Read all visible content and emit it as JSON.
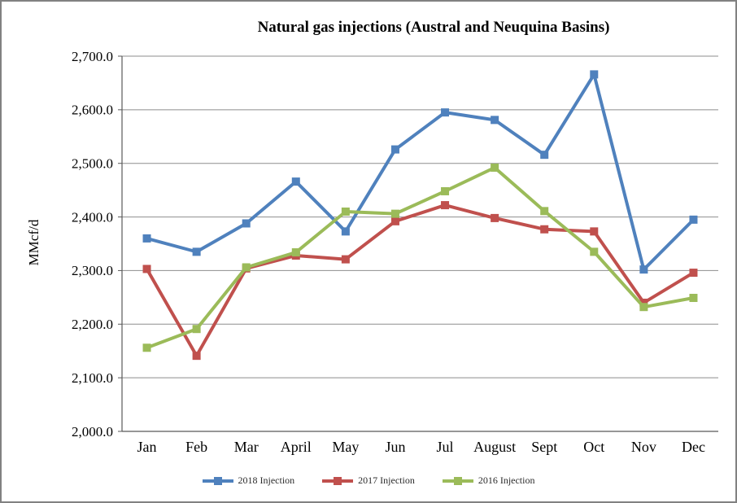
{
  "chart_data": {
    "type": "line",
    "title": "Natural gas injections (Austral and Neuquina Basins)",
    "xlabel": "",
    "ylabel": "MMcf/d",
    "ylim": [
      2000,
      2700
    ],
    "ytick_step": 100,
    "ytick_labels": [
      "2,000.0",
      "2,100.0",
      "2,200.0",
      "2,300.0",
      "2,400.0",
      "2,500.0",
      "2,600.0",
      "2,700.0"
    ],
    "grid": true,
    "legend_position": "bottom",
    "marker": "square",
    "categories": [
      "Jan",
      "Feb",
      "Mar",
      "April",
      "May",
      "Jun",
      "Jul",
      "August",
      "Sept",
      "Oct",
      "Nov",
      "Dec"
    ],
    "series": [
      {
        "name": "2018 Injection",
        "color": "#4F81BD",
        "values": [
          2360,
          2335,
          2388,
          2466,
          2373,
          2526,
          2595,
          2581,
          2516,
          2666,
          2302,
          2395
        ]
      },
      {
        "name": "2017 Injection",
        "color": "#C0504D",
        "values": [
          2303,
          2141,
          2304,
          2328,
          2321,
          2392,
          2422,
          2398,
          2377,
          2373,
          2240,
          2296
        ]
      },
      {
        "name": "2016 Injection",
        "color": "#9BBB59",
        "values": [
          2156,
          2191,
          2306,
          2334,
          2410,
          2406,
          2448,
          2492,
          2411,
          2335,
          2232,
          2249
        ]
      }
    ],
    "colors": {
      "gridline": "#8e8e8e",
      "axis": "#595959",
      "tick_label": "#000000",
      "canvas_border": "#818181",
      "background": "#ffffff"
    }
  }
}
